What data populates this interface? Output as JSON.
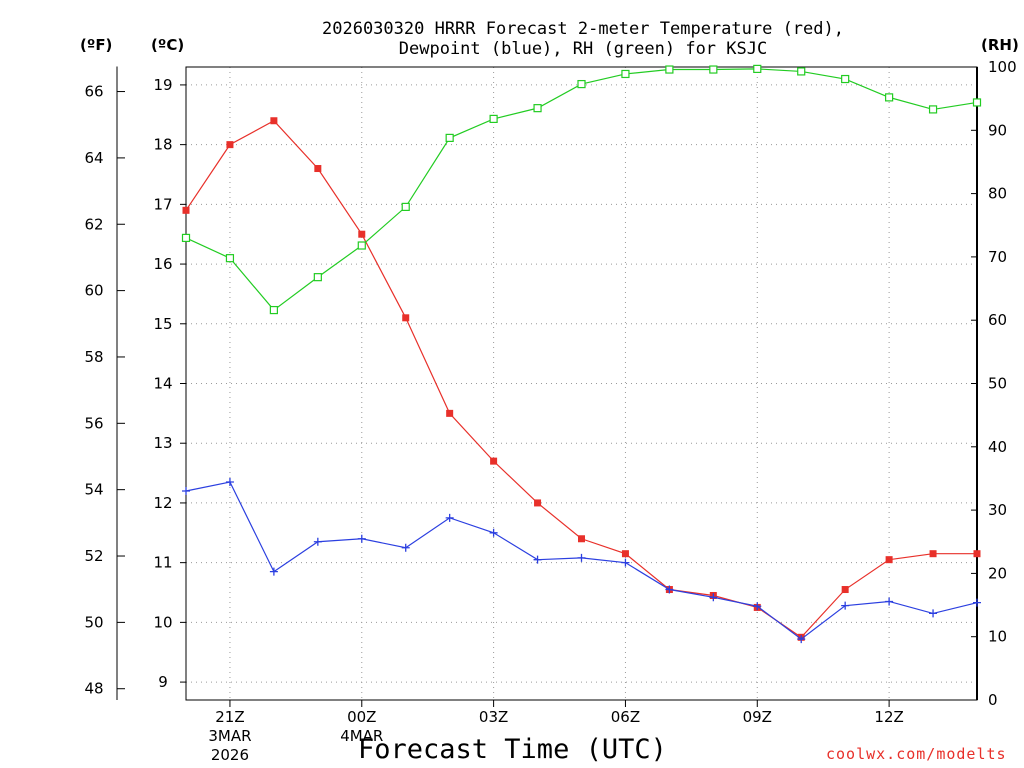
{
  "chart_data": {
    "type": "line",
    "title_line1": "2026030320 HRRR Forecast 2-meter Temperature (red),",
    "title_line2": "Dewpoint (blue), RH (green) for KSJC",
    "left_outer_unit": "(ºF)",
    "left_inner_unit": "(ºC)",
    "right_unit": "(RH)",
    "xlabel": "Forecast Time (UTC)",
    "credit": "coolwx.com/modelts",
    "x_hours": [
      20,
      21,
      22,
      23,
      24,
      25,
      26,
      27,
      28,
      29,
      30,
      31,
      32,
      33,
      34,
      35,
      36,
      37,
      38
    ],
    "x_ticks": [
      {
        "hour": 21,
        "label": "21Z",
        "sub1": "3MAR",
        "sub2": "2026"
      },
      {
        "hour": 24,
        "label": "00Z",
        "sub1": "4MAR",
        "sub2": ""
      },
      {
        "hour": 27,
        "label": "03Z",
        "sub1": "",
        "sub2": ""
      },
      {
        "hour": 30,
        "label": "06Z",
        "sub1": "",
        "sub2": ""
      },
      {
        "hour": 33,
        "label": "09Z",
        "sub1": "",
        "sub2": ""
      },
      {
        "hour": 36,
        "label": "12Z",
        "sub1": "",
        "sub2": ""
      }
    ],
    "x_range": [
      20,
      38
    ],
    "celsius_range": [
      8.7,
      19.3
    ],
    "celsius_ticks": [
      9,
      10,
      11,
      12,
      13,
      14,
      15,
      16,
      17,
      18,
      19
    ],
    "fahrenheit_ticks": [
      48,
      50,
      52,
      54,
      56,
      58,
      60,
      62,
      64,
      66
    ],
    "rh_range": [
      0,
      100
    ],
    "rh_ticks": [
      0,
      10,
      20,
      30,
      40,
      50,
      60,
      70,
      80,
      90,
      100
    ],
    "series": [
      {
        "name": "Temperature (°C)",
        "axis": "celsius",
        "color": "#e8302a",
        "marker": "filled-square",
        "values": [
          16.9,
          18.0,
          18.4,
          17.6,
          16.5,
          15.1,
          13.5,
          12.7,
          12.0,
          11.4,
          11.15,
          10.55,
          10.45,
          10.25,
          9.75,
          10.55,
          11.05,
          11.15,
          11.15
        ]
      },
      {
        "name": "Dewpoint (°C)",
        "axis": "celsius",
        "color": "#2b3fe0",
        "marker": "plus",
        "values": [
          12.2,
          12.35,
          10.85,
          11.35,
          11.4,
          11.25,
          11.75,
          11.5,
          11.05,
          11.08,
          11.0,
          10.55,
          10.42,
          10.27,
          9.72,
          10.28,
          10.35,
          10.15,
          10.33
        ]
      },
      {
        "name": "RH (%)",
        "axis": "rh",
        "color": "#22cc22",
        "marker": "open-square",
        "values": [
          73.0,
          69.8,
          61.6,
          66.8,
          71.8,
          77.9,
          88.8,
          91.8,
          93.5,
          97.3,
          98.9,
          99.6,
          99.6,
          99.7,
          99.3,
          98.1,
          95.2,
          93.3,
          94.4
        ]
      }
    ]
  }
}
